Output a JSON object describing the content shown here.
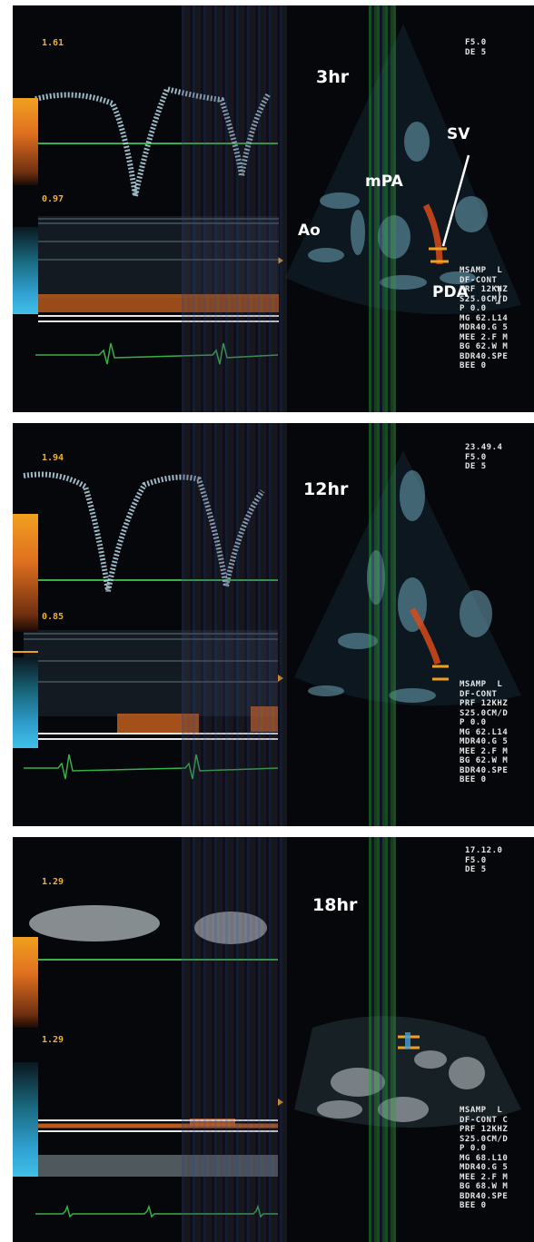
{
  "panels": [
    {
      "time_label": "3hr",
      "scale_top": "1.61",
      "scale_mid": "0.97",
      "top_right": "F5.0\nDE 5",
      "params": "MSAMP  L\nDF-CONT\nPRF 12KHZ\nS25.0CM/D\nP 0.0\nMG 62.L14\nMDR40.G 5\nMEE 2.F M\nBG 62.W M\nBDR40.SPE\nBEE 0",
      "labels": {
        "ao": "Ao",
        "mpa": "mPA",
        "sv": "SV",
        "pda": "PDA"
      }
    },
    {
      "time_label": "12hr",
      "scale_top": "1.94",
      "scale_mid": "0.85",
      "top_right": "23.49.4\nF5.0\nDE 5",
      "params": "MSAMP  L\nDF-CONT\nPRF 12KHZ\nS25.0CM/D\nP 0.0\nMG 62.L14\nMDR40.G 5\nMEE 2.F M\nBG 62.W M\nBDR40.SPE\nBEE 0"
    },
    {
      "time_label": "18hr",
      "scale_top": "1.29",
      "scale_mid": "1.29",
      "top_right": "17.12.0\nF5.0\nDE 5",
      "params": "MSAMP  L\nDF-CONT C\nPRF 12KHZ\nS25.0CM/D\nP 0.0\nMG 68.L10\nMDR40.G 5\nMEE 2.F M\nBG 68.W M\nBDR40.SPE\nBEE 0"
    }
  ]
}
